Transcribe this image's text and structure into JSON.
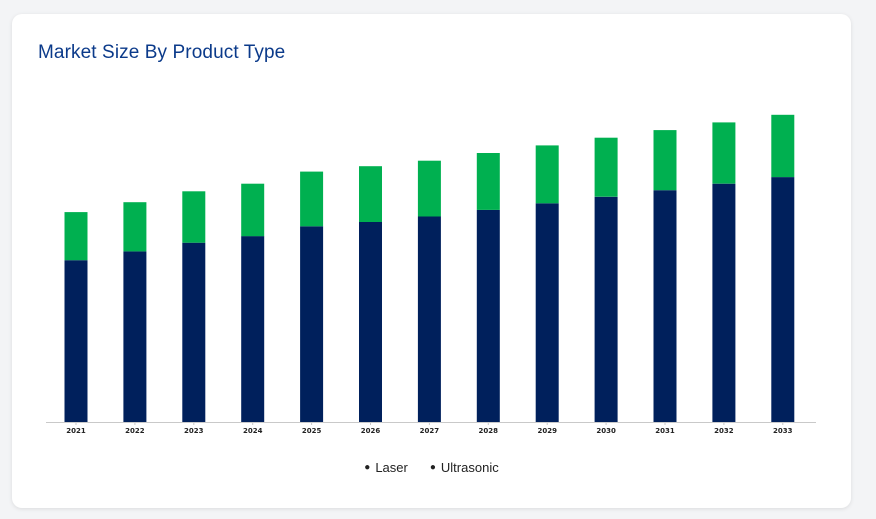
{
  "card": {
    "title": "Market Size By Product Type"
  },
  "chart_data": {
    "type": "bar",
    "stacked": true,
    "title": "Market Size By Product Type",
    "xlabel": "",
    "ylabel": "",
    "grid": false,
    "legend_position": "bottom-center",
    "categories": [
      "2021",
      "2022",
      "2023",
      "2024",
      "2025",
      "2026",
      "2027",
      "2028",
      "2029",
      "2030",
      "2031",
      "2032",
      "2033"
    ],
    "ylim": [
      0,
      300
    ],
    "series": [
      {
        "name": "Laser",
        "color": "#00205c",
        "values": [
          148,
          156,
          164,
          170,
          179,
          183,
          188,
          194,
          200,
          206,
          212,
          218,
          224
        ]
      },
      {
        "name": "Ultrasonic",
        "color": "#00b050",
        "values": [
          44,
          45,
          47,
          48,
          50,
          51,
          51,
          52,
          53,
          54,
          55,
          56,
          57
        ]
      }
    ]
  },
  "legend": {
    "items": [
      {
        "label": "Laser"
      },
      {
        "label": "Ultrasonic"
      }
    ]
  }
}
